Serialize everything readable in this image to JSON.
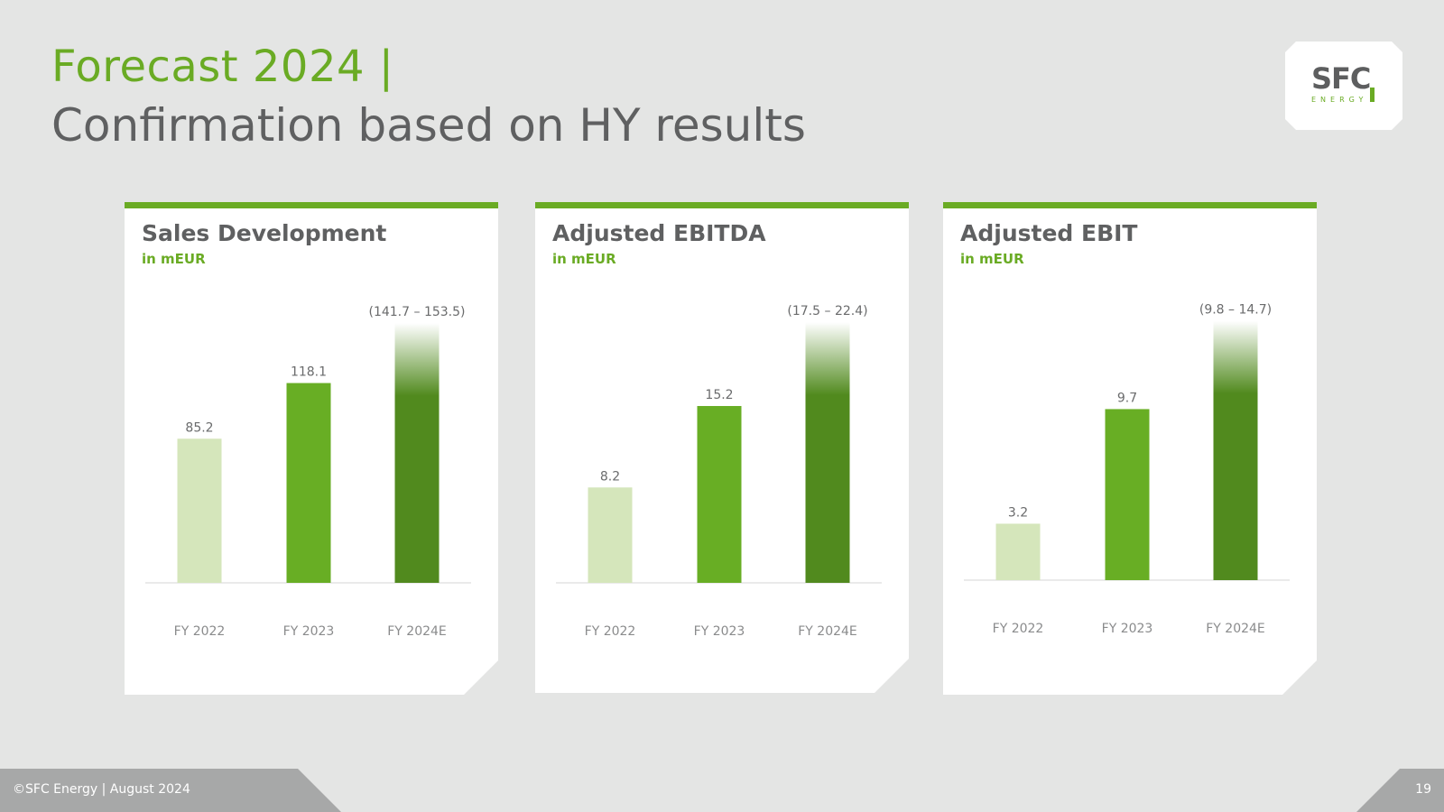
{
  "header": {
    "title_line1": "Forecast 2024 |",
    "title_line2": "Confirmation based on HY results"
  },
  "logo": {
    "word": "SFC",
    "sub": "ENERGY"
  },
  "footer": {
    "copyright": "©SFC Energy | August 2024",
    "page_number": "19"
  },
  "colors": {
    "accent": "#6aab24",
    "bar_2022": "#d5e6bb",
    "bar_2023": "#68ae24",
    "bar_2024": "#518a1e",
    "axis_text": "#8a8b8c",
    "value_text": "#6a6b6c"
  },
  "chart_data": [
    {
      "type": "bar",
      "title": "Sales Development",
      "unit": "in  mEUR",
      "categories": [
        "FY 2022",
        "FY 2023",
        "FY 2024E"
      ],
      "values": [
        85.2,
        118.1,
        153.5
      ],
      "value_labels": [
        "85.2",
        "118.1",
        "(141.7 – 153.5)"
      ],
      "forecast_range": [
        141.7,
        153.5
      ],
      "ylim": [
        0,
        160
      ]
    },
    {
      "type": "bar",
      "title": "Adjusted EBITDA",
      "unit": "in  mEUR",
      "categories": [
        "FY 2022",
        "FY 2023",
        "FY 2024E"
      ],
      "values": [
        8.2,
        15.2,
        22.4
      ],
      "value_labels": [
        "8.2",
        "15.2",
        "(17.5 – 22.4)"
      ],
      "forecast_range": [
        17.5,
        22.4
      ],
      "ylim": [
        0,
        23.5
      ]
    },
    {
      "type": "bar",
      "title": "Adjusted EBIT",
      "unit": "in  mEUR",
      "categories": [
        "FY 2022",
        "FY 2023",
        "FY 2024E"
      ],
      "values": [
        3.2,
        9.7,
        14.7
      ],
      "value_labels": [
        "3.2",
        "9.7",
        "(9.8 – 14.7)"
      ],
      "forecast_range": [
        9.8,
        14.7
      ],
      "ylim": [
        0,
        15.3
      ]
    }
  ]
}
